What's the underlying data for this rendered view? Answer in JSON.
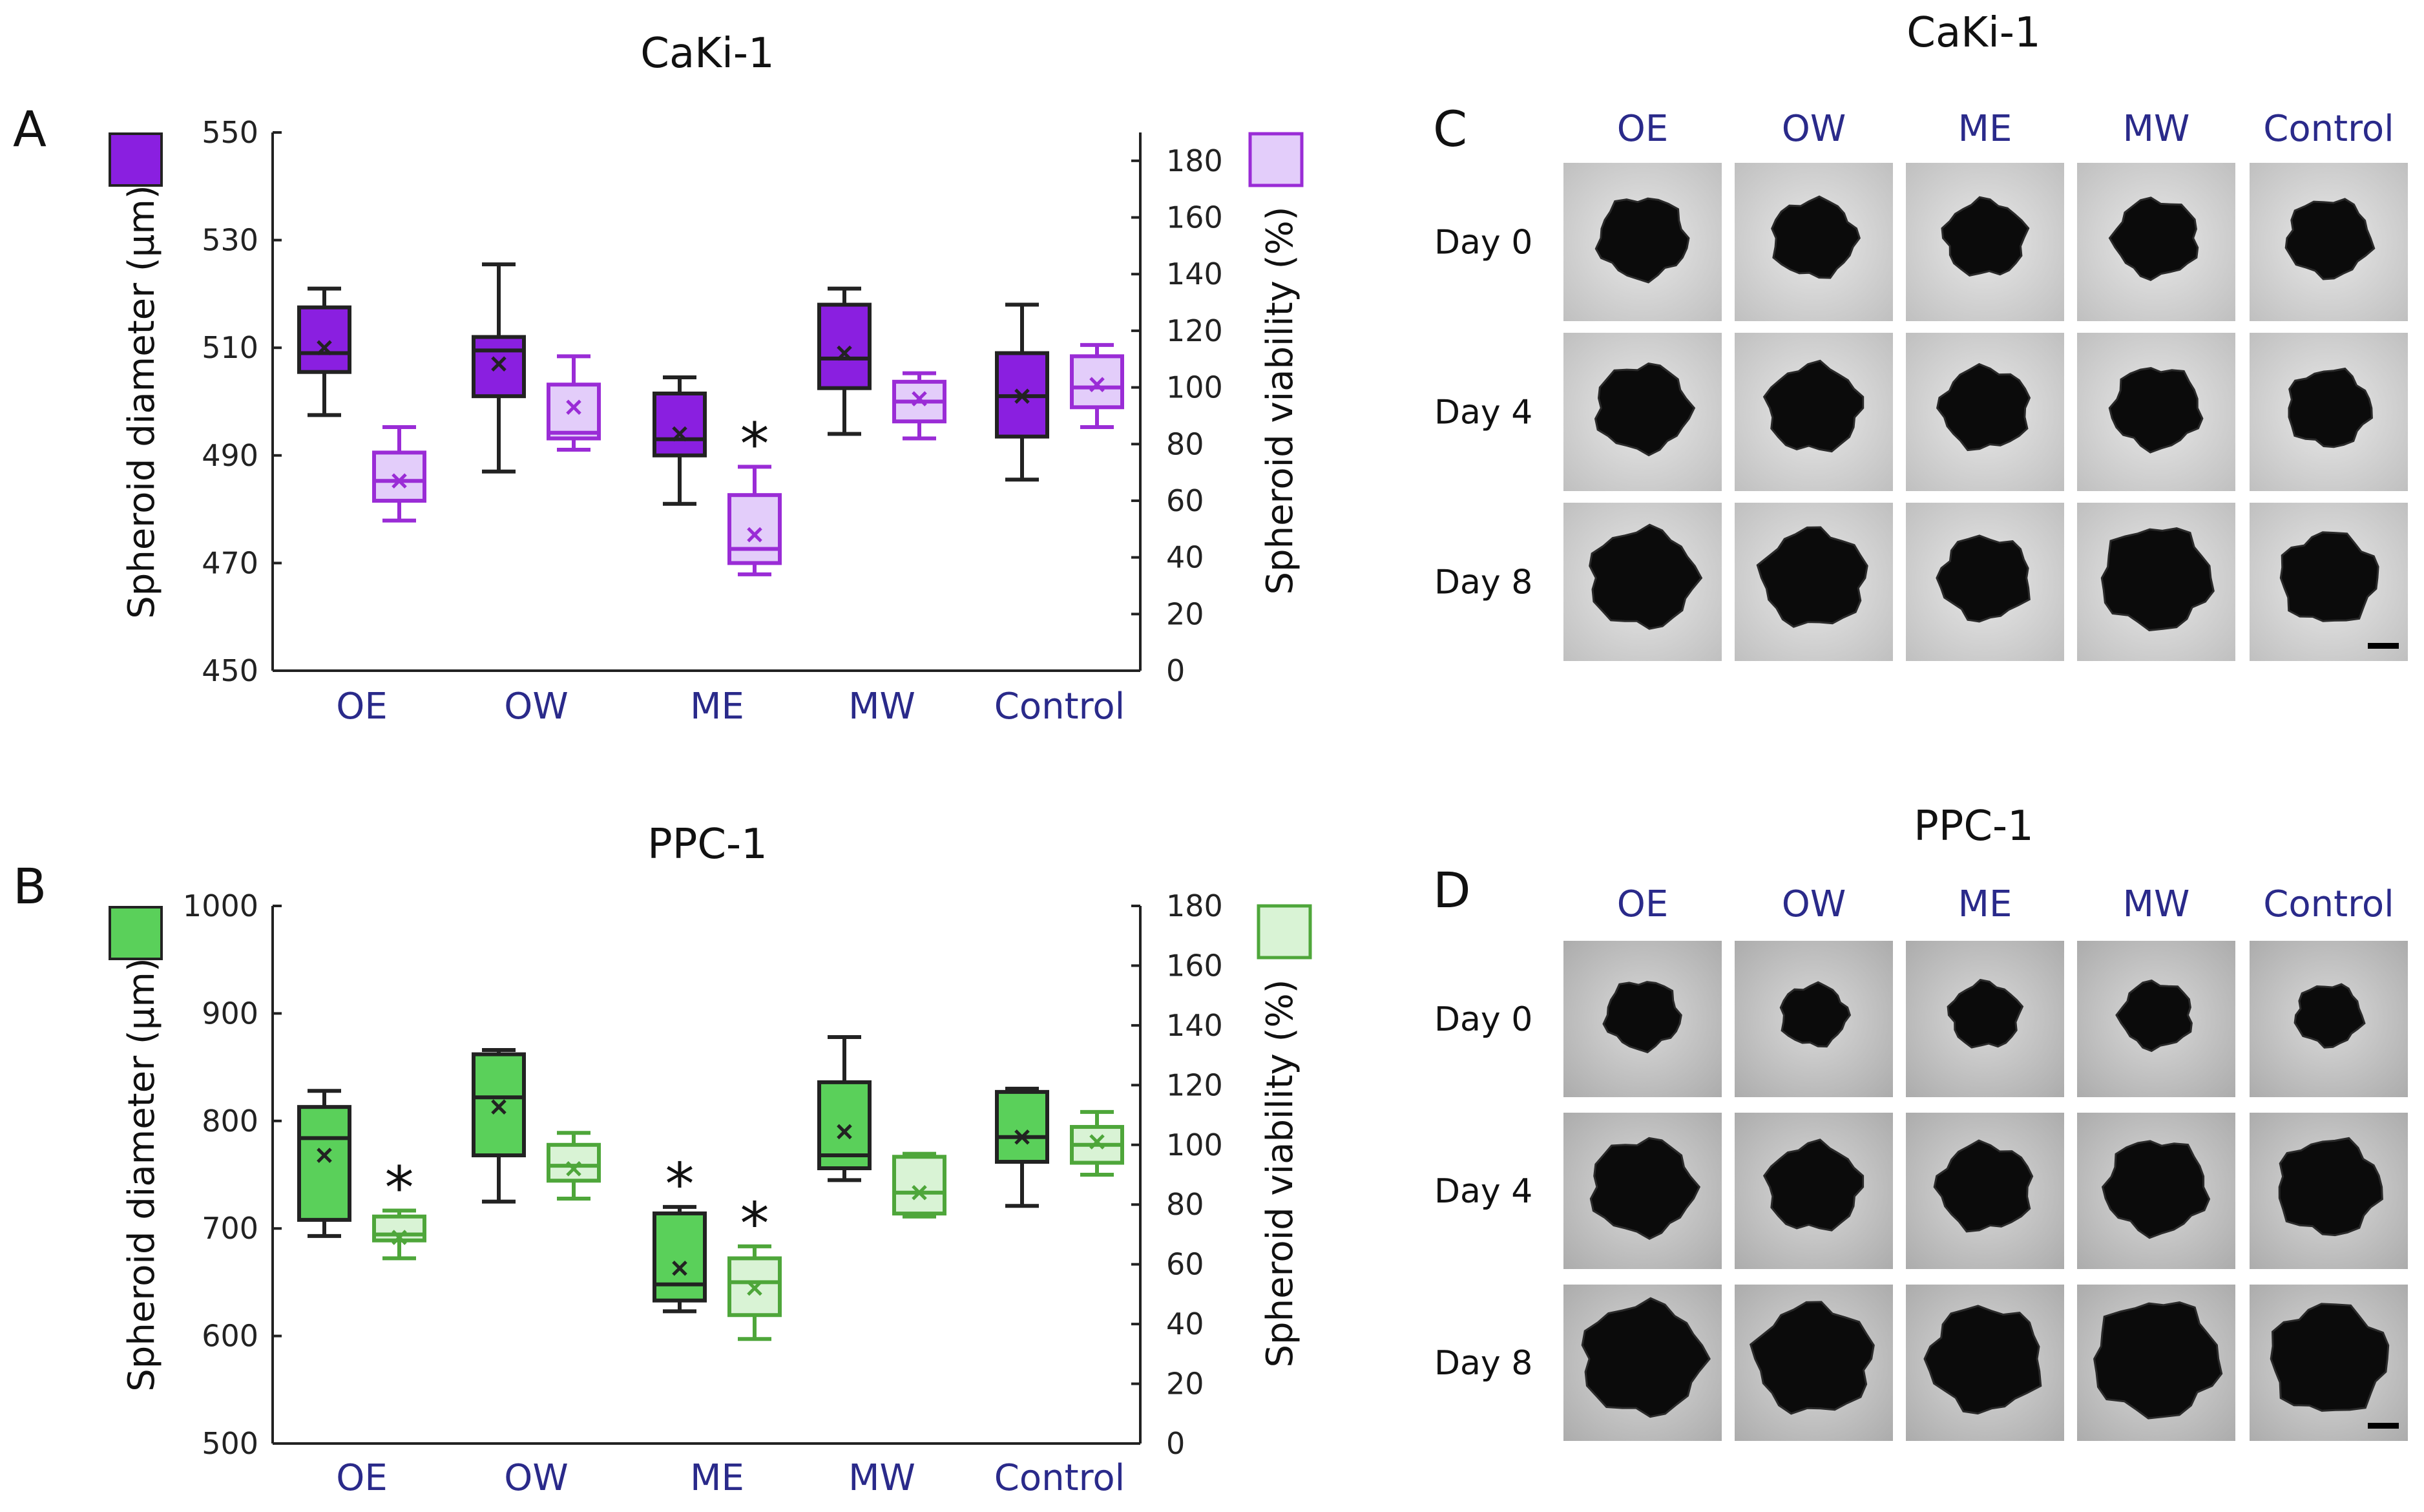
{
  "chart_data": [
    {
      "type": "box",
      "panel": "A",
      "title": "CaKi-1",
      "categories": [
        "OE",
        "OW",
        "ME",
        "MW",
        "Control"
      ],
      "ylabel": "Spheroid diameter (µm)",
      "ylabel2": "Spheroid viability (%)",
      "ylim": [
        450,
        550
      ],
      "y_ticks": [
        450,
        470,
        490,
        510,
        530,
        550
      ],
      "y2lim": [
        0,
        190
      ],
      "y2_ticks": [
        0,
        20,
        40,
        60,
        80,
        100,
        120,
        140,
        160,
        180
      ],
      "series": [
        {
          "name": "diameter",
          "color": "#8a1fe0",
          "stroke": "#222222",
          "boxes": [
            {
              "min": 497.5,
              "q1": 505.5,
              "median": 509.0,
              "q3": 517.5,
              "max": 521.0,
              "mean": 510.0
            },
            {
              "min": 487.0,
              "q1": 501.0,
              "median": 509.5,
              "q3": 512.0,
              "max": 525.5,
              "mean": 507.0
            },
            {
              "min": 481.0,
              "q1": 490.0,
              "median": 493.0,
              "q3": 501.5,
              "max": 504.5,
              "mean": 494.0
            },
            {
              "min": 494.0,
              "q1": 502.5,
              "median": 508.0,
              "q3": 518.0,
              "max": 521.0,
              "mean": 509.0
            },
            {
              "min": 485.5,
              "q1": 493.5,
              "median": 501.0,
              "q3": 509.0,
              "max": 518.0,
              "mean": 501.0
            }
          ],
          "significant": [
            false,
            false,
            false,
            false,
            false
          ]
        },
        {
          "name": "viability",
          "color": "#e3cdfa",
          "stroke": "#9a2cd6",
          "boxes": [
            {
              "min": 53,
              "q1": 60,
              "median": 67,
              "q3": 77,
              "max": 86,
              "mean": 67
            },
            {
              "min": 78,
              "q1": 82,
              "median": 84,
              "q3": 101,
              "max": 111,
              "mean": 93
            },
            {
              "min": 34,
              "q1": 38,
              "median": 43,
              "q3": 62,
              "max": 72,
              "mean": 48
            },
            {
              "min": 82,
              "q1": 88,
              "median": 95,
              "q3": 102,
              "max": 105,
              "mean": 96
            },
            {
              "min": 86,
              "q1": 93,
              "median": 100,
              "q3": 111,
              "max": 115,
              "mean": 101
            }
          ],
          "significant": [
            false,
            false,
            true,
            false,
            false
          ]
        }
      ]
    },
    {
      "type": "box",
      "panel": "B",
      "title": "PPC-1",
      "categories": [
        "OE",
        "OW",
        "ME",
        "MW",
        "Control"
      ],
      "ylabel": "Spheroid diameter (µm)",
      "ylabel2": "Spheroid viability (%)",
      "ylim": [
        500,
        1000
      ],
      "y_ticks": [
        500,
        600,
        700,
        800,
        900,
        1000
      ],
      "y2lim": [
        0,
        180
      ],
      "y2_ticks": [
        0,
        20,
        40,
        60,
        80,
        100,
        120,
        140,
        160,
        180
      ],
      "series": [
        {
          "name": "diameter",
          "color": "#5ad05a",
          "stroke": "#222222",
          "boxes": [
            {
              "min": 693,
              "q1": 708,
              "median": 784,
              "q3": 813,
              "max": 828,
              "mean": 768
            },
            {
              "min": 725,
              "q1": 768,
              "median": 822,
              "q3": 862,
              "max": 866,
              "mean": 813
            },
            {
              "min": 623,
              "q1": 633,
              "median": 648,
              "q3": 714,
              "max": 720,
              "mean": 663
            },
            {
              "min": 745,
              "q1": 756,
              "median": 768,
              "q3": 836,
              "max": 878,
              "mean": 790
            },
            {
              "min": 721,
              "q1": 762,
              "median": 785,
              "q3": 827,
              "max": 830,
              "mean": 785
            }
          ],
          "significant": [
            false,
            false,
            true,
            false,
            false
          ]
        },
        {
          "name": "viability",
          "color": "#d9f3d5",
          "stroke": "#4ea63a",
          "boxes": [
            {
              "min": 62,
              "q1": 68,
              "median": 70,
              "q3": 76,
              "max": 78,
              "mean": 69
            },
            {
              "min": 82,
              "q1": 88,
              "median": 93,
              "q3": 100,
              "max": 104,
              "mean": 92
            },
            {
              "min": 35,
              "q1": 43,
              "median": 54,
              "q3": 62,
              "max": 66,
              "mean": 52
            },
            {
              "min": 76,
              "q1": 77,
              "median": 84,
              "q3": 96,
              "max": 97,
              "mean": 84
            },
            {
              "min": 90,
              "q1": 94,
              "median": 100,
              "q3": 106,
              "max": 111,
              "mean": 101
            }
          ],
          "significant": [
            true,
            false,
            true,
            false,
            false
          ]
        }
      ]
    }
  ],
  "panel_letters": [
    "A",
    "B",
    "C",
    "D"
  ],
  "significance_marker": "*",
  "images": {
    "C": {
      "title": "CaKi-1",
      "columns": [
        "OE",
        "OW",
        "ME",
        "MW",
        "Control"
      ],
      "rows": [
        "Day 0",
        "Day 4",
        "Day 8"
      ]
    },
    "D": {
      "title": "PPC-1",
      "columns": [
        "OE",
        "OW",
        "ME",
        "MW",
        "Control"
      ],
      "rows": [
        "Day 0",
        "Day 4",
        "Day 8"
      ]
    }
  }
}
